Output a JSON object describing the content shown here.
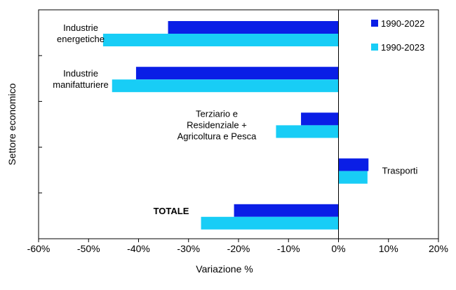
{
  "chart_data": {
    "type": "bar",
    "orientation": "horizontal",
    "xlabel": "Variazione %",
    "ylabel": "Settore economico",
    "xlim": [
      -60,
      20
    ],
    "xticks": [
      -60,
      -50,
      -40,
      -30,
      -20,
      -10,
      0,
      10,
      20
    ],
    "tick_format": "percent",
    "grid": false,
    "legend_position": "top-right",
    "categories": [
      {
        "label": [
          "Industrie",
          "energetiche"
        ],
        "bold": false
      },
      {
        "label": [
          "Industrie",
          "manifatturiere"
        ],
        "bold": false
      },
      {
        "label": [
          "Terziario e",
          "Residenziale +",
          "Agricoltura e Pesca"
        ],
        "bold": false
      },
      {
        "label": [
          "Trasporti"
        ],
        "bold": false
      },
      {
        "label": [
          "TOTALE"
        ],
        "bold": true
      }
    ],
    "series": [
      {
        "name": "1990-2022",
        "color": "#0a1ee6",
        "values": [
          -34.1,
          -40.5,
          -7.5,
          6.0,
          -20.9
        ]
      },
      {
        "name": "1990-2023",
        "color": "#18cdf6",
        "values": [
          -47.1,
          -45.3,
          -12.5,
          5.8,
          -27.5
        ]
      }
    ]
  }
}
